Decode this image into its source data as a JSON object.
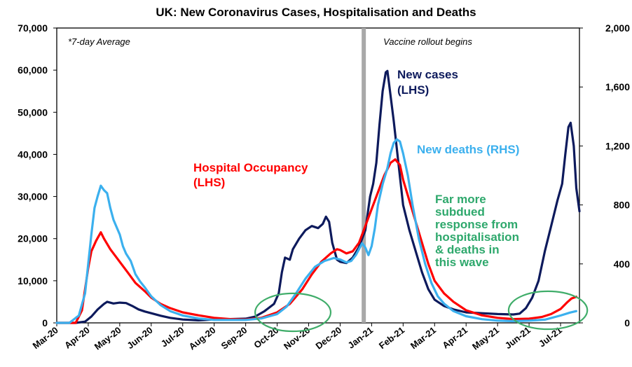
{
  "chart_data": {
    "type": "line",
    "title": "UK: New Coronavirus Cases, Hospitalisation and Deaths",
    "note": "*7-day Average",
    "left_axis": {
      "min": 0,
      "max": 70000,
      "ticks": [
        "0",
        "10,000",
        "20,000",
        "30,000",
        "40,000",
        "50,000",
        "60,000",
        "70,000"
      ]
    },
    "right_axis": {
      "min": 0,
      "max": 2000,
      "ticks": [
        "0",
        "400",
        "800",
        "1,200",
        "1,600",
        "2,000"
      ]
    },
    "x_range": [
      0,
      16.6
    ],
    "x_ticks": [
      "Mar-20",
      "Apr-20",
      "May-20",
      "Jun-20",
      "Jul-20",
      "Aug-20",
      "Sep-20",
      "Oct-20",
      "Nov-20",
      "Dec-20",
      "Jan-21",
      "Feb-21",
      "Mar-21",
      "Apr-21",
      "May-21",
      "Jun-21",
      "Jul-21"
    ],
    "vaccine_line": {
      "x": 9.75,
      "label": "Vaccine rollout begins"
    },
    "series": [
      {
        "name_lines": [
          "New cases",
          "(LHS)"
        ],
        "axis": "left",
        "color": "#0d1a5c",
        "points": [
          [
            0,
            0
          ],
          [
            0.6,
            0
          ],
          [
            0.9,
            300
          ],
          [
            1.1,
            1500
          ],
          [
            1.3,
            3200
          ],
          [
            1.5,
            4500
          ],
          [
            1.6,
            5000
          ],
          [
            1.8,
            4600
          ],
          [
            2.0,
            4800
          ],
          [
            2.2,
            4700
          ],
          [
            2.4,
            4000
          ],
          [
            2.6,
            3200
          ],
          [
            2.8,
            2700
          ],
          [
            3.0,
            2300
          ],
          [
            3.3,
            1700
          ],
          [
            3.6,
            1200
          ],
          [
            4.0,
            800
          ],
          [
            4.5,
            600
          ],
          [
            5.0,
            800
          ],
          [
            5.5,
            900
          ],
          [
            6.0,
            1000
          ],
          [
            6.3,
            1500
          ],
          [
            6.6,
            2800
          ],
          [
            6.9,
            4500
          ],
          [
            7.05,
            7000
          ],
          [
            7.15,
            12000
          ],
          [
            7.25,
            15500
          ],
          [
            7.4,
            15000
          ],
          [
            7.5,
            17500
          ],
          [
            7.7,
            20000
          ],
          [
            7.9,
            22000
          ],
          [
            8.1,
            23000
          ],
          [
            8.3,
            22500
          ],
          [
            8.45,
            23500
          ],
          [
            8.55,
            25200
          ],
          [
            8.65,
            24000
          ],
          [
            8.75,
            19000
          ],
          [
            8.9,
            15000
          ],
          [
            9.0,
            14500
          ],
          [
            9.2,
            14200
          ],
          [
            9.4,
            15500
          ],
          [
            9.6,
            18000
          ],
          [
            9.8,
            22000
          ],
          [
            9.95,
            30000
          ],
          [
            10.05,
            33000
          ],
          [
            10.15,
            38000
          ],
          [
            10.25,
            47000
          ],
          [
            10.35,
            55000
          ],
          [
            10.45,
            59500
          ],
          [
            10.5,
            59800
          ],
          [
            10.55,
            57000
          ],
          [
            10.7,
            48000
          ],
          [
            10.85,
            38000
          ],
          [
            11.0,
            28000
          ],
          [
            11.2,
            22000
          ],
          [
            11.4,
            17000
          ],
          [
            11.6,
            12000
          ],
          [
            11.8,
            8000
          ],
          [
            12.0,
            5500
          ],
          [
            12.3,
            4000
          ],
          [
            12.6,
            3200
          ],
          [
            13.0,
            2500
          ],
          [
            13.5,
            2300
          ],
          [
            14.0,
            2100
          ],
          [
            14.5,
            2000
          ],
          [
            14.7,
            2200
          ],
          [
            14.9,
            3500
          ],
          [
            15.1,
            6000
          ],
          [
            15.3,
            10000
          ],
          [
            15.5,
            17000
          ],
          [
            15.7,
            23000
          ],
          [
            15.9,
            29000
          ],
          [
            16.05,
            33000
          ],
          [
            16.15,
            40000
          ],
          [
            16.25,
            46500
          ],
          [
            16.32,
            47500
          ],
          [
            16.42,
            42000
          ],
          [
            16.5,
            32000
          ],
          [
            16.6,
            26500
          ]
        ]
      },
      {
        "name_lines": [
          "Hospital Occupancy",
          "(LHS)"
        ],
        "axis": "left",
        "color": "#ff0000",
        "points": [
          [
            0,
            0
          ],
          [
            0.6,
            0
          ],
          [
            0.8,
            3000
          ],
          [
            0.9,
            8000
          ],
          [
            1.0,
            13000
          ],
          [
            1.1,
            17000
          ],
          [
            1.25,
            19500
          ],
          [
            1.4,
            21500
          ],
          [
            1.5,
            20000
          ],
          [
            1.7,
            17500
          ],
          [
            1.9,
            15500
          ],
          [
            2.1,
            13500
          ],
          [
            2.3,
            11500
          ],
          [
            2.5,
            9500
          ],
          [
            2.8,
            7500
          ],
          [
            3.0,
            6000
          ],
          [
            3.3,
            4500
          ],
          [
            3.6,
            3500
          ],
          [
            4.0,
            2500
          ],
          [
            4.5,
            1800
          ],
          [
            5.0,
            1200
          ],
          [
            5.5,
            900
          ],
          [
            6.0,
            800
          ],
          [
            6.5,
            1200
          ],
          [
            7.0,
            2500
          ],
          [
            7.4,
            4500
          ],
          [
            7.8,
            8000
          ],
          [
            8.1,
            11500
          ],
          [
            8.4,
            14500
          ],
          [
            8.7,
            16500
          ],
          [
            8.9,
            17500
          ],
          [
            9.0,
            17300
          ],
          [
            9.2,
            16500
          ],
          [
            9.4,
            17000
          ],
          [
            9.6,
            19000
          ],
          [
            9.8,
            23000
          ],
          [
            10.0,
            27000
          ],
          [
            10.2,
            31000
          ],
          [
            10.4,
            35000
          ],
          [
            10.6,
            38000
          ],
          [
            10.75,
            38800
          ],
          [
            10.9,
            37500
          ],
          [
            11.0,
            34000
          ],
          [
            11.2,
            29000
          ],
          [
            11.4,
            24000
          ],
          [
            11.6,
            19000
          ],
          [
            11.8,
            14000
          ],
          [
            12.0,
            10000
          ],
          [
            12.3,
            7000
          ],
          [
            12.6,
            5000
          ],
          [
            13.0,
            3000
          ],
          [
            13.5,
            1800
          ],
          [
            14.0,
            1200
          ],
          [
            14.5,
            900
          ],
          [
            15.0,
            1000
          ],
          [
            15.4,
            1400
          ],
          [
            15.7,
            2100
          ],
          [
            16.0,
            3300
          ],
          [
            16.2,
            4800
          ],
          [
            16.35,
            5800
          ],
          [
            16.5,
            6200
          ]
        ]
      },
      {
        "name_lines": [
          "New deaths (RHS)"
        ],
        "axis": "right",
        "color": "#3bb0ee",
        "points": [
          [
            0,
            0
          ],
          [
            0.4,
            0
          ],
          [
            0.7,
            50
          ],
          [
            0.9,
            200
          ],
          [
            1.0,
            400
          ],
          [
            1.1,
            600
          ],
          [
            1.2,
            780
          ],
          [
            1.3,
            860
          ],
          [
            1.4,
            930
          ],
          [
            1.5,
            900
          ],
          [
            1.6,
            880
          ],
          [
            1.7,
            780
          ],
          [
            1.8,
            700
          ],
          [
            1.9,
            650
          ],
          [
            2.0,
            600
          ],
          [
            2.1,
            520
          ],
          [
            2.2,
            470
          ],
          [
            2.35,
            420
          ],
          [
            2.5,
            330
          ],
          [
            2.65,
            280
          ],
          [
            2.8,
            240
          ],
          [
            3.0,
            180
          ],
          [
            3.3,
            120
          ],
          [
            3.6,
            80
          ],
          [
            4.0,
            50
          ],
          [
            4.5,
            30
          ],
          [
            5.0,
            20
          ],
          [
            5.5,
            20
          ],
          [
            6.0,
            20
          ],
          [
            6.5,
            30
          ],
          [
            7.0,
            60
          ],
          [
            7.3,
            110
          ],
          [
            7.6,
            200
          ],
          [
            7.9,
            300
          ],
          [
            8.2,
            380
          ],
          [
            8.5,
            420
          ],
          [
            8.8,
            440
          ],
          [
            9.0,
            430
          ],
          [
            9.2,
            410
          ],
          [
            9.35,
            420
          ],
          [
            9.5,
            460
          ],
          [
            9.6,
            500
          ],
          [
            9.7,
            540
          ],
          [
            9.8,
            510
          ],
          [
            9.9,
            460
          ],
          [
            10.0,
            520
          ],
          [
            10.1,
            640
          ],
          [
            10.2,
            800
          ],
          [
            10.35,
            940
          ],
          [
            10.5,
            1050
          ],
          [
            10.6,
            1150
          ],
          [
            10.7,
            1220
          ],
          [
            10.8,
            1245
          ],
          [
            10.9,
            1230
          ],
          [
            11.0,
            1150
          ],
          [
            11.15,
            1000
          ],
          [
            11.3,
            800
          ],
          [
            11.5,
            570
          ],
          [
            11.7,
            400
          ],
          [
            11.9,
            270
          ],
          [
            12.1,
            180
          ],
          [
            12.3,
            130
          ],
          [
            12.6,
            80
          ],
          [
            13.0,
            45
          ],
          [
            13.5,
            25
          ],
          [
            14.0,
            15
          ],
          [
            14.5,
            12
          ],
          [
            15.0,
            15
          ],
          [
            15.5,
            22
          ],
          [
            16.0,
            50
          ],
          [
            16.3,
            70
          ],
          [
            16.5,
            80
          ]
        ]
      }
    ],
    "annotations": [
      {
        "lines": [
          "Far more",
          "subdued",
          "response from",
          "hospitalisation",
          "& deaths in",
          "this wave"
        ],
        "color": "#2ea86c"
      }
    ],
    "highlight_ellipses": [
      {
        "cx": 7.5,
        "cy": 2500,
        "rx": 1.2,
        "ry": 4500,
        "color": "#40ad6a"
      },
      {
        "cx": 15.6,
        "cy": 3000,
        "rx": 1.25,
        "ry": 4500,
        "color": "#40ad6a"
      }
    ]
  }
}
